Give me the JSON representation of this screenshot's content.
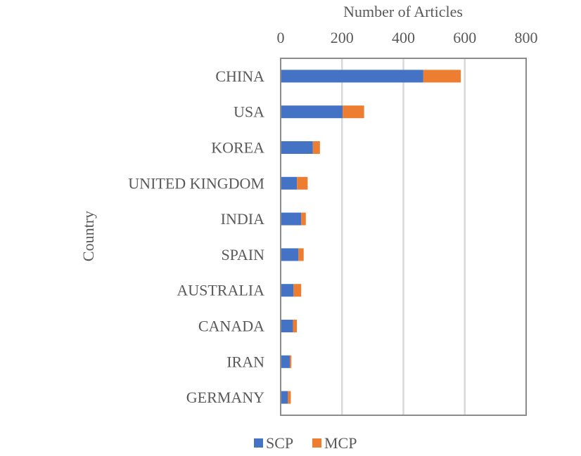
{
  "chart_data": {
    "type": "bar",
    "orientation": "horizontal",
    "stacked": true,
    "xlabel": "Number of Articles",
    "ylabel": "Country",
    "xlim": [
      0,
      800
    ],
    "xticks": [
      "0",
      "200",
      "400",
      "600",
      "800"
    ],
    "x_axis_position": "top",
    "grid": true,
    "legend_position": "bottom",
    "categories": [
      "CHINA",
      "USA",
      "KOREA",
      "UNITED KINGDOM",
      "INDIA",
      "SPAIN",
      "AUSTRALIA",
      "CANADA",
      "IRAN",
      "GERMANY"
    ],
    "series": [
      {
        "name": "SCP",
        "color": "#4472C4",
        "values": [
          465,
          202,
          105,
          53,
          67,
          58,
          42,
          40,
          30,
          23
        ]
      },
      {
        "name": "MCP",
        "color": "#ED7D31",
        "values": [
          122,
          70,
          23,
          35,
          15,
          17,
          25,
          13,
          5,
          10
        ]
      }
    ]
  }
}
